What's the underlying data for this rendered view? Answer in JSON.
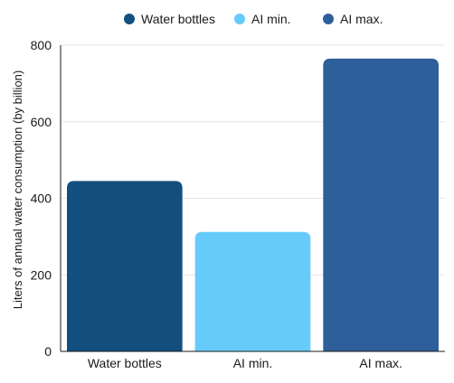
{
  "chart_data": {
    "type": "bar",
    "categories": [
      "Water bottles",
      "AI min.",
      "AI max."
    ],
    "values": [
      445,
      312,
      765
    ],
    "colors": [
      "#134f7e",
      "#66cbfb",
      "#2f5f9a"
    ],
    "legend": {
      "position": "top-right",
      "entries": [
        {
          "label": "Water bottles",
          "color": "#134f7e"
        },
        {
          "label": "AI min.",
          "color": "#66cbfb"
        },
        {
          "label": "AI max.",
          "color": "#2f5f9a"
        }
      ]
    },
    "title": "",
    "xlabel": "",
    "ylabel": "Liters of annual water consumption (by billion)",
    "ylim": [
      0,
      800
    ],
    "yticks": [
      0,
      200,
      400,
      600,
      800
    ],
    "grid": true
  }
}
